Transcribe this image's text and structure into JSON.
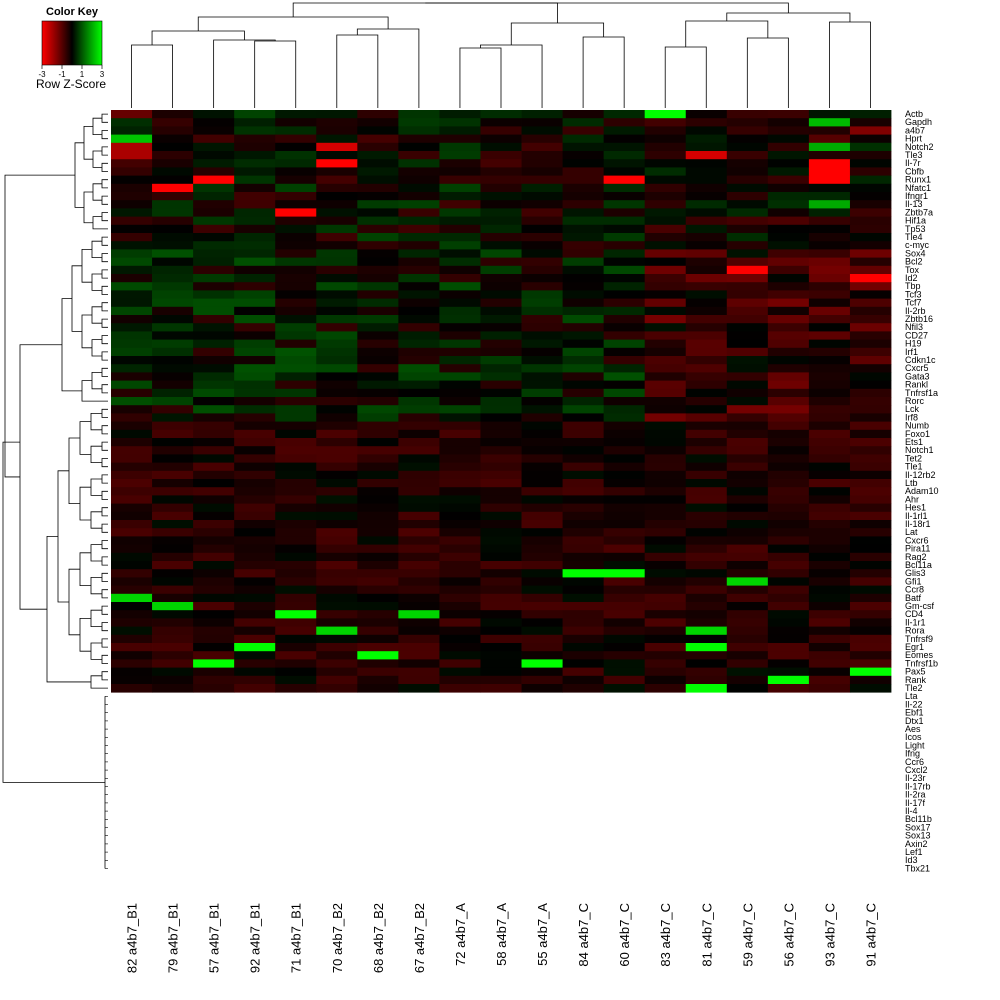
{
  "chart_data": {
    "type": "heatmap",
    "title": "",
    "color_key": {
      "title": "Color Key",
      "label": "Row Z-Score",
      "ticks": [
        "-3",
        "-1",
        "1",
        "3"
      ],
      "range": [
        -3,
        3
      ],
      "colors": {
        "low": "#ff0000",
        "mid": "#000000",
        "high": "#00ff00"
      }
    },
    "columns": [
      "82 a4b7_B1",
      "79 a4b7_B1",
      "57 a4b7_B1",
      "92 a4b7_B1",
      "71 a4b7_B1",
      "70 a4b7_B2",
      "68 a4b7_B2",
      "67 a4b7_B2",
      "72 a4b7_A",
      "58 a4b7_A",
      "55 a4b7_A",
      "84 a4b7_C",
      "60 a4b7_C",
      "83 a4b7_C",
      "81 a4b7_C",
      "59 a4b7_C",
      "56 a4b7_C",
      "93 a4b7_C",
      "91 a4b7_C"
    ],
    "rows": [
      "Actb",
      "Gapdh",
      "a4b7",
      "Hprt",
      "Notch2",
      "Tle3",
      "Il-7r",
      "Cbfb",
      "Runx1",
      "Nfatc1",
      "Ifngr1",
      "Il-13",
      "Zbtb7a",
      "Hif1a",
      "Tp53",
      "Tle4",
      "c-myc",
      "Sox4",
      "Bcl2",
      "Tox",
      "Id2",
      "Tbp",
      "Tcf3",
      "Tcf7",
      "Il-2rb",
      "Zbtb16",
      "Nfil3",
      "CD27",
      "H19",
      "Irf1",
      "Cdkn1c",
      "Cxcr5",
      "Gata3",
      "Rankl",
      "Tnfrsf1a",
      "Rorc",
      "Lck",
      "Irf8",
      "Numb",
      "Foxo1",
      "Ets1",
      "Notch1",
      "Tet2",
      "Tle1",
      "Il-12rb2",
      "Ltb",
      "Adam10",
      "Ahr",
      "Hes1",
      "Il-1rl1",
      "Il-18r1",
      "Lat",
      "Cxcr6",
      "Pira11",
      "Rag2",
      "Bcl11a",
      "Glis3",
      "Gfi1",
      "Ccr8",
      "Batf",
      "Gm-csf",
      "CD4",
      "Il-1r1",
      "Rora",
      "Tnfrsf9",
      "Egr1",
      "Eomes",
      "Tnfrsf1b",
      "Pax5",
      "Rank",
      "Tle2",
      "Lta",
      "Il-22",
      "Ebf1",
      "Dtx1",
      "Aes",
      "Icos",
      "Light",
      "Ifng",
      "Ccr6",
      "Cxcl2",
      "Il-23r",
      "Il-17rb",
      "Il-2ra",
      "Il-17f",
      "Il-4",
      "Bcl11b",
      "Sox17",
      "Sox13",
      "Axin2",
      "Lef1",
      "Id3",
      "Tbx21"
    ],
    "notable_cells": [
      {
        "row": "Actb",
        "col": "83 a4b7_C",
        "z": 3
      },
      {
        "row": "Actb",
        "col": "82 a4b7_B1",
        "z": -1.2
      },
      {
        "row": "Gapdh",
        "col": "93 a4b7_C",
        "z": 2.2
      },
      {
        "row": "a4b7",
        "col": "91 a4b7_C",
        "z": -1.5
      },
      {
        "row": "Hprt",
        "col": "82 a4b7_B1",
        "z": 2.3
      },
      {
        "row": "Notch2",
        "col": "82 a4b7_B1",
        "z": -2
      },
      {
        "row": "Notch2",
        "col": "70 a4b7_B2",
        "z": -2.5
      },
      {
        "row": "Notch2",
        "col": "93 a4b7_C",
        "z": 2
      },
      {
        "row": "Tle3",
        "col": "82 a4b7_B1",
        "z": -2
      },
      {
        "row": "Tle3",
        "col": "81 a4b7_C",
        "z": -2.5
      },
      {
        "row": "Il-7r",
        "col": "70 a4b7_B2",
        "z": -3
      },
      {
        "row": "Il-7r",
        "col": "93 a4b7_C",
        "z": -3
      },
      {
        "row": "Cbfb",
        "col": "93 a4b7_C",
        "z": -3
      },
      {
        "row": "Runx1",
        "col": "93 a4b7_C",
        "z": -3
      },
      {
        "row": "Runx1",
        "col": "57 a4b7_B1",
        "z": -3
      },
      {
        "row": "Runx1",
        "col": "60 a4b7_C",
        "z": -3
      },
      {
        "row": "Nfatc1",
        "col": "79 a4b7_B1",
        "z": -3
      },
      {
        "row": "Il-13",
        "col": "93 a4b7_C",
        "z": 2
      },
      {
        "row": "Zbtb7a",
        "col": "71 a4b7_B1",
        "z": -3
      },
      {
        "row": "Tox",
        "col": "59 a4b7_C",
        "z": -3
      },
      {
        "row": "Id2",
        "col": "91 a4b7_C",
        "z": -3
      },
      {
        "row": "Glis3",
        "col": "84 a4b7_C",
        "z": 3
      },
      {
        "row": "Glis3",
        "col": "60 a4b7_C",
        "z": 3
      },
      {
        "row": "Gfi1",
        "col": "59 a4b7_C",
        "z": 2.5
      },
      {
        "row": "Batf",
        "col": "82 a4b7_B1",
        "z": 2.5
      },
      {
        "row": "Gm-csf",
        "col": "79 a4b7_B1",
        "z": 2.5
      },
      {
        "row": "CD4",
        "col": "71 a4b7_B1",
        "z": 3
      },
      {
        "row": "CD4",
        "col": "67 a4b7_B2",
        "z": 2.5
      },
      {
        "row": "Rora",
        "col": "70 a4b7_B2",
        "z": 2.5
      },
      {
        "row": "Rora",
        "col": "81 a4b7_C",
        "z": 2.5
      },
      {
        "row": "Egr1",
        "col": "92 a4b7_B1",
        "z": 3
      },
      {
        "row": "Egr1",
        "col": "81 a4b7_C",
        "z": 3
      },
      {
        "row": "Eomes",
        "col": "68 a4b7_B2",
        "z": 3
      },
      {
        "row": "Tnfrsf1b",
        "col": "57 a4b7_B1",
        "z": 3
      },
      {
        "row": "Tnfrsf1b",
        "col": "55 a4b7_A",
        "z": 3
      },
      {
        "row": "Pax5",
        "col": "91 a4b7_C",
        "z": 3
      },
      {
        "row": "Rank",
        "col": "56 a4b7_C",
        "z": 3
      },
      {
        "row": "Tle2",
        "col": "81 a4b7_C",
        "z": 3
      }
    ],
    "dendrogram": {
      "rows": true,
      "columns": true
    },
    "legend_position": "top-left"
  }
}
